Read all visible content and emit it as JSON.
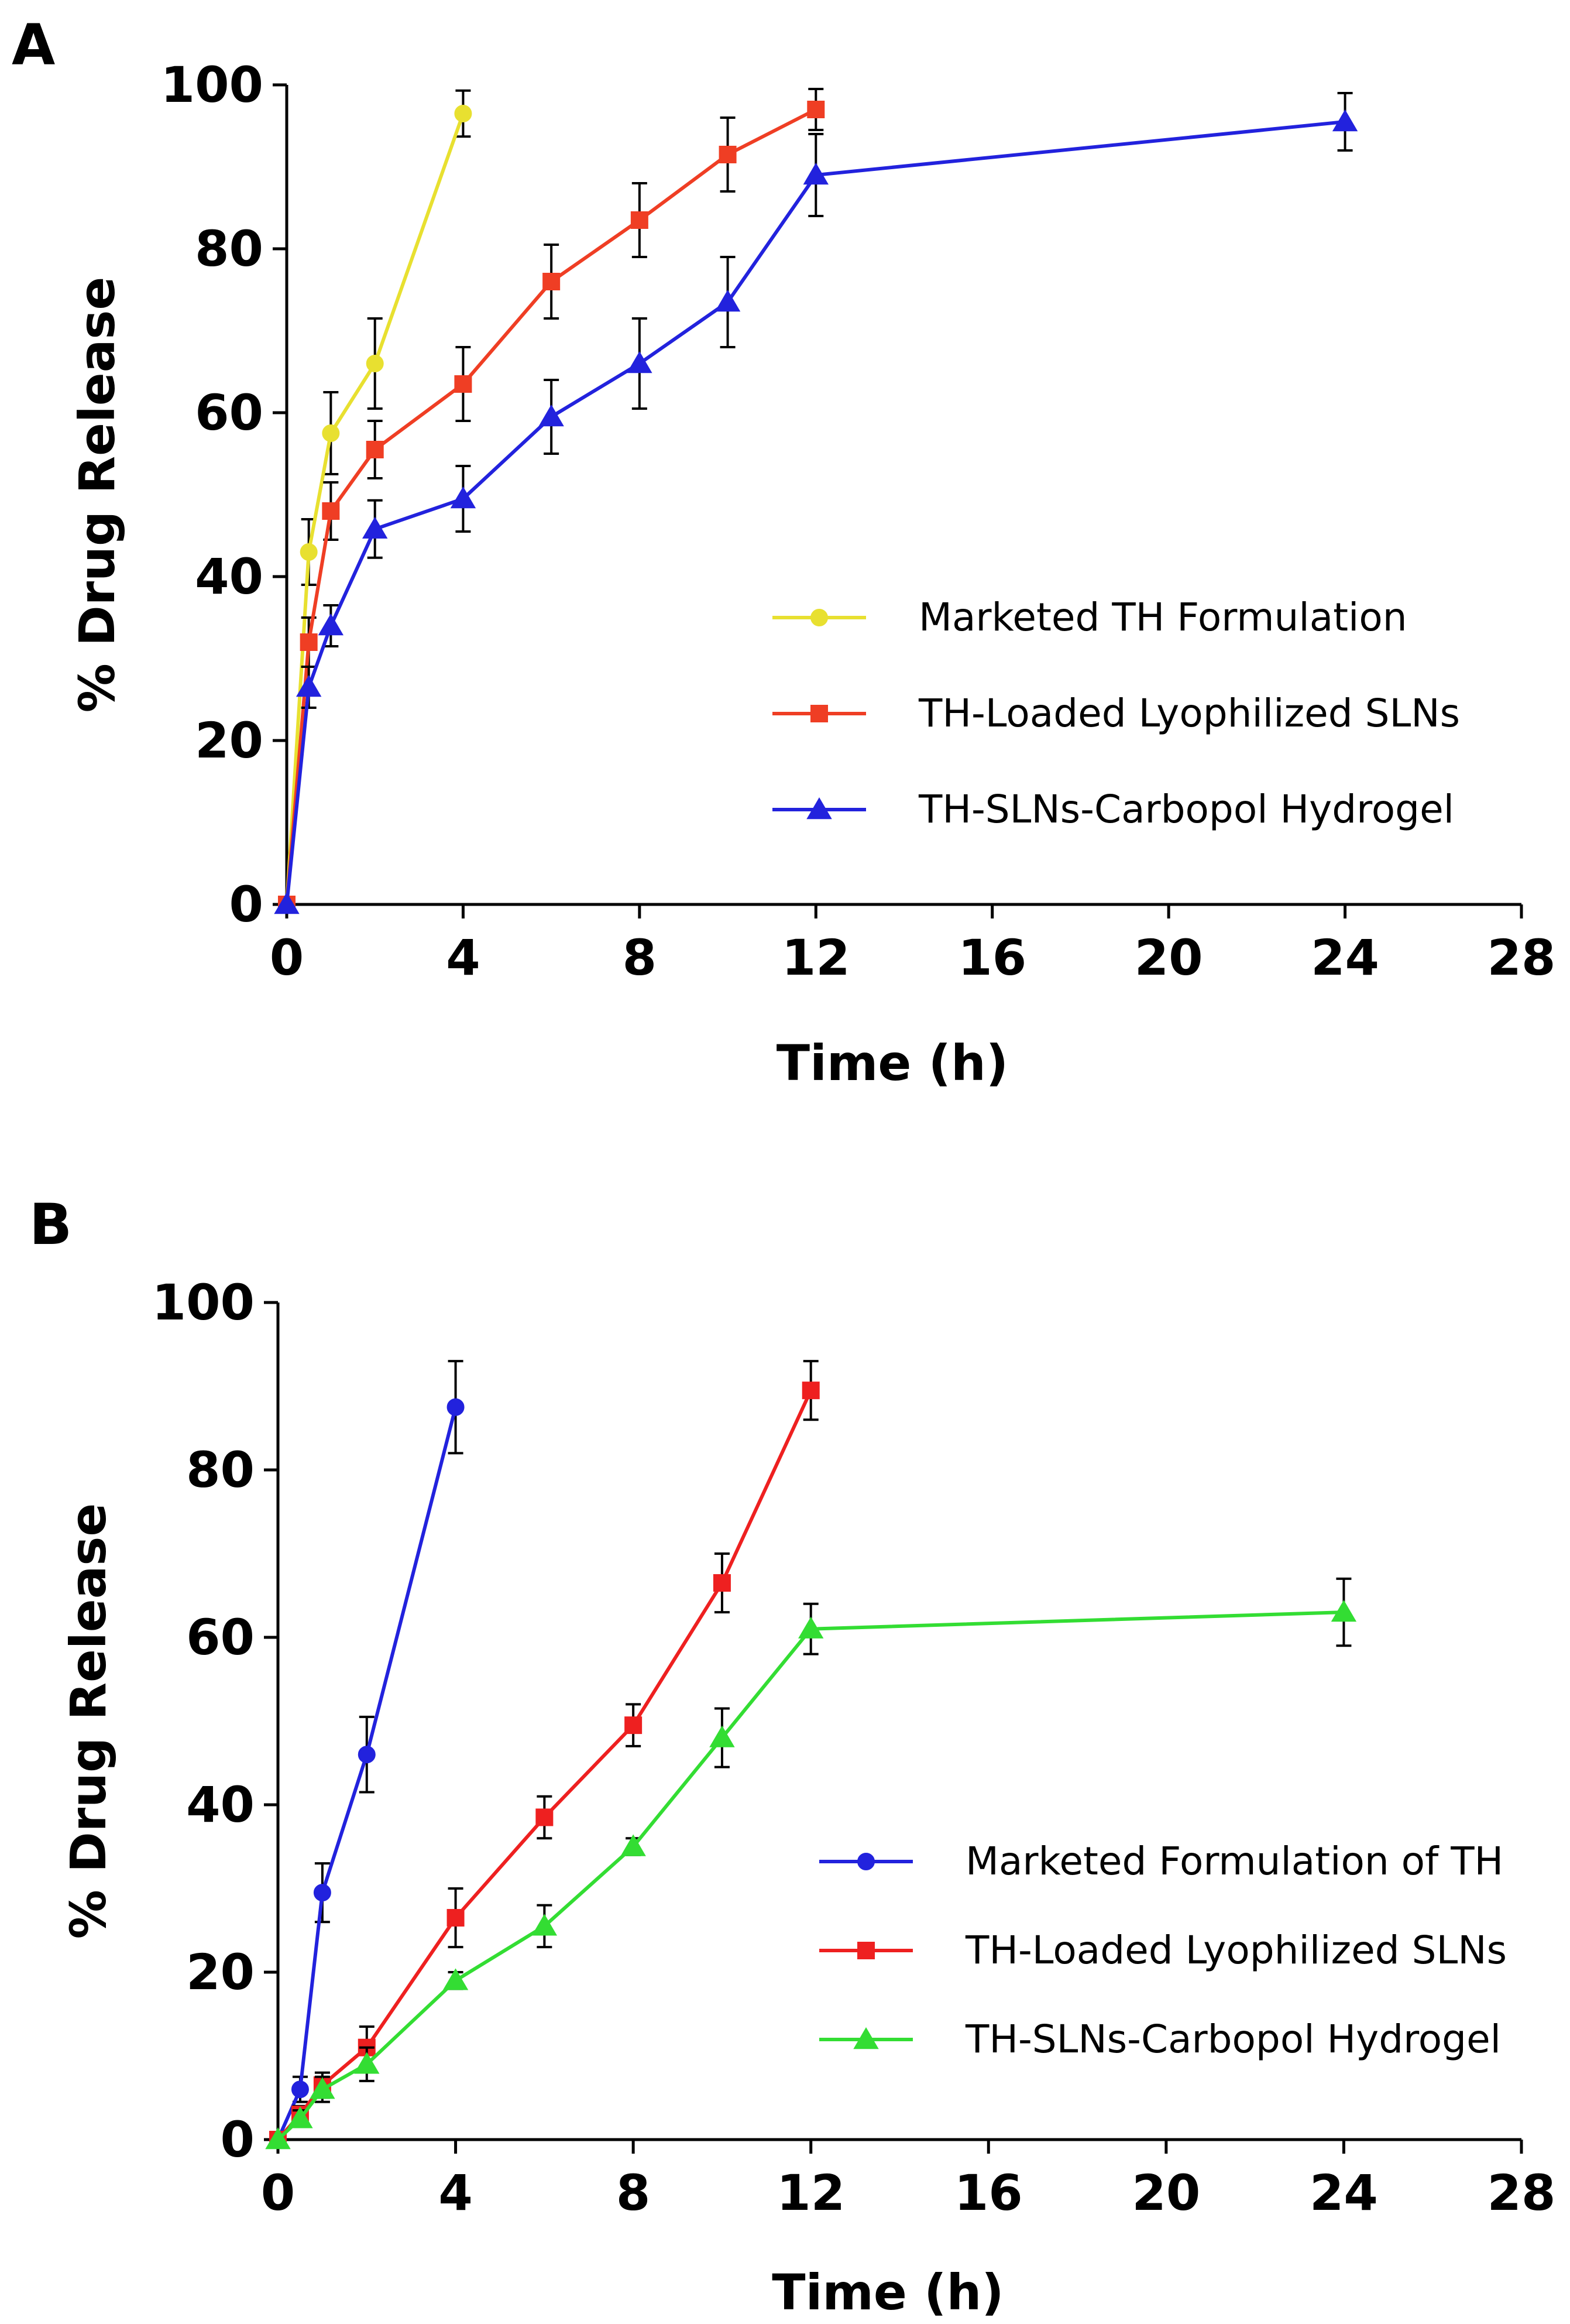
{
  "chart_data": [
    {
      "panel": "A",
      "type": "line",
      "xlabel": "Time (h)",
      "ylabel": "% Drug Release",
      "xlim": [
        0,
        28
      ],
      "ylim": [
        0,
        100
      ],
      "xticks": [
        0,
        4,
        8,
        12,
        16,
        20,
        24,
        28
      ],
      "yticks": [
        0,
        20,
        40,
        60,
        80,
        100
      ],
      "grid": false,
      "legend_position": "right",
      "series": [
        {
          "name": "Marketed TH Formulation",
          "color": "#e8e030",
          "marker": "circle",
          "x": [
            0,
            0.5,
            1,
            2,
            4
          ],
          "y": [
            0,
            43,
            57.5,
            66,
            96.5
          ],
          "err": [
            0,
            4,
            5,
            5.5,
            2.8
          ]
        },
        {
          "name": "TH-Loaded Lyophilized SLNs",
          "color": "#ef3e24",
          "marker": "square",
          "x": [
            0,
            0.5,
            1,
            2,
            4,
            6,
            8,
            10,
            12
          ],
          "y": [
            0,
            32,
            48,
            55.5,
            63.5,
            76,
            83.5,
            91.5,
            97
          ],
          "err": [
            0,
            3,
            3.5,
            3.5,
            4.5,
            4.5,
            4.5,
            4.5,
            2.5
          ]
        },
        {
          "name": "TH-SLNs-Carbopol Hydrogel",
          "color": "#2222dd",
          "marker": "triangle",
          "x": [
            0,
            0.5,
            1,
            2,
            4,
            6,
            8,
            10,
            12,
            24
          ],
          "y": [
            0,
            26.5,
            34,
            45.8,
            49.5,
            59.5,
            66,
            73.5,
            89,
            95.5
          ],
          "err": [
            0,
            2.5,
            2.5,
            3.5,
            4,
            4.5,
            5.5,
            5.5,
            5,
            3.5
          ]
        }
      ]
    },
    {
      "panel": "B",
      "type": "line",
      "xlabel": "Time (h)",
      "ylabel": "% Drug Release",
      "xlim": [
        0,
        28
      ],
      "ylim": [
        0,
        100
      ],
      "xticks": [
        0,
        4,
        8,
        12,
        16,
        20,
        24,
        28
      ],
      "yticks": [
        0,
        20,
        40,
        60,
        80,
        100
      ],
      "grid": false,
      "legend_position": "right",
      "series": [
        {
          "name": "Marketed Formulation of TH",
          "color": "#2222dd",
          "marker": "circle",
          "x": [
            0,
            0.5,
            1,
            2,
            4
          ],
          "y": [
            0,
            6,
            29.5,
            46,
            87.5
          ],
          "err": [
            0,
            1.5,
            3.5,
            4.5,
            5.5
          ]
        },
        {
          "name": "TH-Loaded Lyophilized SLNs",
          "color": "#ee2020",
          "marker": "square",
          "x": [
            0,
            0.5,
            1,
            2,
            4,
            6,
            8,
            10,
            12
          ],
          "y": [
            0,
            3,
            6.5,
            11,
            26.5,
            38.5,
            49.5,
            66.5,
            89.5
          ],
          "err": [
            0,
            1,
            1.5,
            2.5,
            3.5,
            2.5,
            2.5,
            3.5,
            3.5
          ]
        },
        {
          "name": "TH-SLNs-Carbopol Hydrogel",
          "color": "#33dd33",
          "marker": "triangle",
          "x": [
            0,
            0.5,
            1,
            2,
            4,
            6,
            8,
            10,
            12,
            24
          ],
          "y": [
            0,
            2.5,
            6,
            9,
            19,
            25.5,
            35,
            48,
            61,
            63
          ],
          "err": [
            0,
            1,
            1.5,
            2,
            1,
            2.5,
            1,
            3.5,
            3,
            4
          ]
        }
      ]
    }
  ]
}
